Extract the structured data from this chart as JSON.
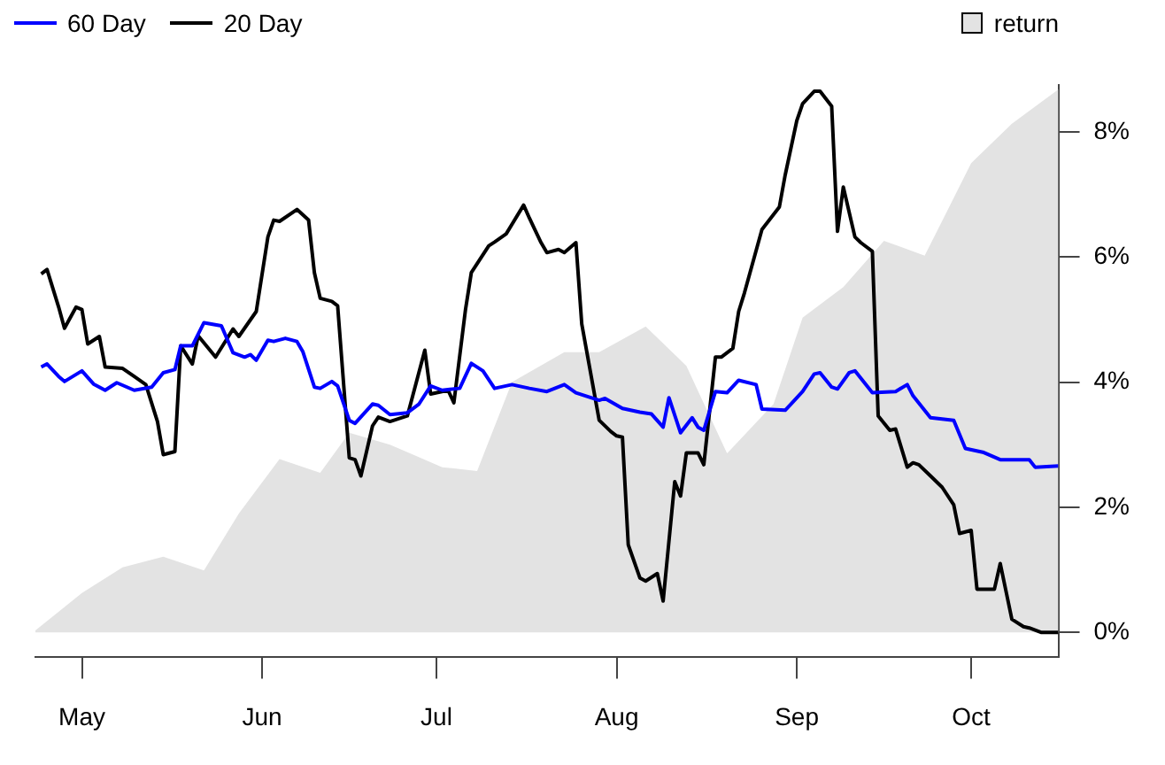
{
  "chart_data": {
    "type": "line",
    "legend": "top",
    "marker": "none",
    "line_style": "solid",
    "xlim": [
      "--04-23",
      "--10-16"
    ],
    "xticks": [
      {
        "value": "--05-01",
        "label": "May"
      },
      {
        "value": "--06-01",
        "label": "Jun"
      },
      {
        "value": "--07-01",
        "label": "Jul"
      },
      {
        "value": "--08-01",
        "label": "Aug"
      },
      {
        "value": "--09-01",
        "label": "Sep"
      },
      {
        "value": "--10-01",
        "label": "Oct"
      }
    ],
    "ylim": [
      -0.4,
      8.75
    ],
    "yticks": [
      {
        "value": 0,
        "label": "0%"
      },
      {
        "value": 2,
        "label": "2%"
      },
      {
        "value": 4,
        "label": "4%"
      },
      {
        "value": 6,
        "label": "6%"
      },
      {
        "value": 8,
        "label": "8%"
      }
    ],
    "series": [
      {
        "name": "60 Day",
        "color": "#0000ff",
        "x": [
          "--04-24",
          "--04-25",
          "--04-27",
          "--04-28",
          "--05-01",
          "--05-03",
          "--05-05",
          "--05-07",
          "--05-10",
          "--05-13",
          "--05-15",
          "--05-17",
          "--05-18",
          "--05-20",
          "--05-22",
          "--05-25",
          "--05-27",
          "--05-29",
          "--05-30",
          "--05-31",
          "--06-02",
          "--06-03",
          "--06-05",
          "--06-07",
          "--06-08",
          "--06-10",
          "--06-11",
          "--06-13",
          "--06-14",
          "--06-16",
          "--06-17",
          "--06-20",
          "--06-21",
          "--06-23",
          "--06-26",
          "--06-28",
          "--06-30",
          "--07-02",
          "--07-05",
          "--07-07",
          "--07-09",
          "--07-11",
          "--07-14",
          "--07-17",
          "--07-20",
          "--07-23",
          "--07-25",
          "--07-29",
          "--07-30",
          "--08-02",
          "--08-05",
          "--08-07",
          "--08-09",
          "--08-10",
          "--08-12",
          "--08-14",
          "--08-15",
          "--08-16",
          "--08-18",
          "--08-20",
          "--08-22",
          "--08-25",
          "--08-26",
          "--08-30",
          "--08-31",
          "--09-02",
          "--09-04",
          "--09-05",
          "--09-07",
          "--09-08",
          "--09-10",
          "--09-11",
          "--09-14",
          "--09-18",
          "--09-20",
          "--09-21",
          "--09-24",
          "--09-28",
          "--09-30",
          "--10-03",
          "--10-06",
          "--10-11",
          "--10-12",
          "--10-16"
        ],
        "values": [
          4.24,
          4.29,
          4.09,
          4.01,
          4.18,
          3.97,
          3.87,
          3.99,
          3.87,
          3.92,
          4.15,
          4.2,
          4.58,
          4.58,
          4.95,
          4.9,
          4.47,
          4.4,
          4.44,
          4.35,
          4.67,
          4.65,
          4.7,
          4.65,
          4.49,
          3.92,
          3.9,
          4.01,
          3.94,
          3.39,
          3.34,
          3.65,
          3.63,
          3.48,
          3.51,
          3.65,
          3.94,
          3.87,
          3.9,
          4.3,
          4.18,
          3.9,
          3.96,
          3.9,
          3.85,
          3.96,
          3.83,
          3.71,
          3.74,
          3.58,
          3.52,
          3.49,
          3.28,
          3.75,
          3.19,
          3.43,
          3.28,
          3.23,
          3.85,
          3.83,
          4.03,
          3.96,
          3.57,
          3.55,
          3.65,
          3.85,
          4.13,
          4.15,
          3.92,
          3.89,
          4.15,
          4.18,
          3.83,
          3.85,
          3.96,
          3.78,
          3.43,
          3.39,
          2.94,
          2.88,
          2.76,
          2.76,
          2.64,
          2.66
        ]
      },
      {
        "name": "20 Day",
        "color": "#000000",
        "x": [
          "--04-24",
          "--04-25",
          "--04-27",
          "--04-28",
          "--04-30",
          "--05-01",
          "--05-02",
          "--05-04",
          "--05-05",
          "--05-08",
          "--05-10",
          "--05-12",
          "--05-14",
          "--05-15",
          "--05-17",
          "--05-18",
          "--05-20",
          "--05-21",
          "--05-24",
          "--05-27",
          "--05-28",
          "--05-31",
          "--06-02",
          "--06-03",
          "--06-04",
          "--06-07",
          "--06-09",
          "--06-10",
          "--06-11",
          "--06-13",
          "--06-14",
          "--06-16",
          "--06-17",
          "--06-18",
          "--06-20",
          "--06-21",
          "--06-23",
          "--06-26",
          "--06-29",
          "--06-30",
          "--07-03",
          "--07-04",
          "--07-06",
          "--07-07",
          "--07-10",
          "--07-11",
          "--07-13",
          "--07-16",
          "--07-17",
          "--07-19",
          "--07-20",
          "--07-22",
          "--07-23",
          "--07-25",
          "--07-26",
          "--07-29",
          "--07-31",
          "--08-01",
          "--08-02",
          "--08-03",
          "--08-05",
          "--08-06",
          "--08-08",
          "--08-09",
          "--08-11",
          "--08-12",
          "--08-13",
          "--08-15",
          "--08-16",
          "--08-18",
          "--08-19",
          "--08-21",
          "--08-22",
          "--08-23",
          "--08-26",
          "--08-27",
          "--08-29",
          "--08-30",
          "--09-01",
          "--09-02",
          "--09-04",
          "--09-05",
          "--09-07",
          "--09-08",
          "--09-09",
          "--09-11",
          "--09-12",
          "--09-14",
          "--09-15",
          "--09-17",
          "--09-18",
          "--09-20",
          "--09-21",
          "--09-22",
          "--09-24",
          "--09-26",
          "--09-28",
          "--09-29",
          "--10-01",
          "--10-02",
          "--10-05",
          "--10-06",
          "--10-08",
          "--10-10",
          "--10-11",
          "--10-13",
          "--10-16"
        ],
        "values": [
          5.73,
          5.8,
          5.2,
          4.86,
          5.2,
          5.16,
          4.61,
          4.73,
          4.24,
          4.22,
          4.09,
          3.96,
          3.37,
          2.84,
          2.89,
          4.58,
          4.29,
          4.74,
          4.4,
          4.85,
          4.73,
          5.13,
          6.32,
          6.59,
          6.57,
          6.76,
          6.59,
          5.75,
          5.34,
          5.29,
          5.22,
          2.79,
          2.76,
          2.5,
          3.3,
          3.44,
          3.37,
          3.46,
          4.51,
          3.81,
          3.87,
          3.67,
          5.16,
          5.75,
          6.18,
          6.24,
          6.37,
          6.83,
          6.62,
          6.23,
          6.07,
          6.12,
          6.07,
          6.23,
          4.93,
          3.39,
          3.21,
          3.14,
          3.12,
          1.4,
          0.87,
          0.82,
          0.94,
          0.5,
          2.41,
          2.18,
          2.87,
          2.87,
          2.68,
          4.4,
          4.4,
          4.54,
          5.13,
          5.43,
          6.44,
          6.56,
          6.8,
          7.31,
          8.18,
          8.45,
          8.65,
          8.65,
          8.41,
          6.41,
          7.12,
          6.32,
          6.23,
          6.09,
          3.46,
          3.23,
          3.25,
          2.64,
          2.71,
          2.68,
          2.5,
          2.32,
          2.04,
          1.58,
          1.63,
          0.69,
          0.69,
          1.1,
          0.21,
          0.09,
          0.07,
          0.0,
          0.0
        ]
      },
      {
        "name": "return",
        "color": "#e3e3e3",
        "type": "area",
        "x": [
          "--04-23",
          "--05-01",
          "--05-08",
          "--05-15",
          "--05-22",
          "--05-28",
          "--06-04",
          "--06-11",
          "--06-16",
          "--06-23",
          "--07-02",
          "--07-08",
          "--07-14",
          "--07-23",
          "--07-29",
          "--08-06",
          "--08-13",
          "--08-20",
          "--08-28",
          "--09-02",
          "--09-09",
          "--09-16",
          "--09-23",
          "--10-01",
          "--10-08",
          "--10-16"
        ],
        "values": [
          0.03,
          0.63,
          1.04,
          1.21,
          0.99,
          1.9,
          2.77,
          2.55,
          3.19,
          3.0,
          2.64,
          2.58,
          4.0,
          4.48,
          4.48,
          4.89,
          4.26,
          2.86,
          3.65,
          5.03,
          5.52,
          6.26,
          6.02,
          7.5,
          8.13,
          8.68
        ]
      }
    ]
  }
}
